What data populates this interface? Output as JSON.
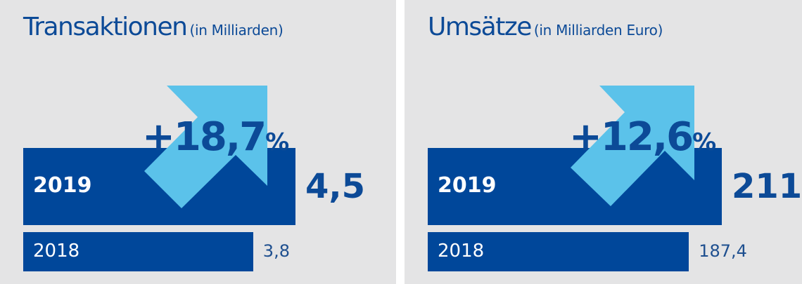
{
  "colors": {
    "panel_bg": "#e4e4e5",
    "bar": "#00479a",
    "text_dark_blue": "#0c4a97",
    "arrow": "#5bc2ea"
  },
  "chart_data": [
    {
      "type": "bar",
      "orientation": "horizontal",
      "title": "Transaktionen",
      "subtitle": "(in Milliarden)",
      "categories": [
        "2019",
        "2018"
      ],
      "values": [
        4.5,
        3.8
      ],
      "value_labels": [
        "4,5",
        "3,8"
      ],
      "annotation": {
        "sign": "+",
        "number": "18,7",
        "unit": "%"
      }
    },
    {
      "type": "bar",
      "orientation": "horizontal",
      "title": "Umsätze",
      "subtitle": "(in Milliarden Euro)",
      "categories": [
        "2019",
        "2018"
      ],
      "values": [
        211,
        187.4
      ],
      "value_labels": [
        "211",
        "187,4"
      ],
      "annotation": {
        "sign": "+",
        "number": "12,6",
        "unit": "%"
      }
    }
  ]
}
